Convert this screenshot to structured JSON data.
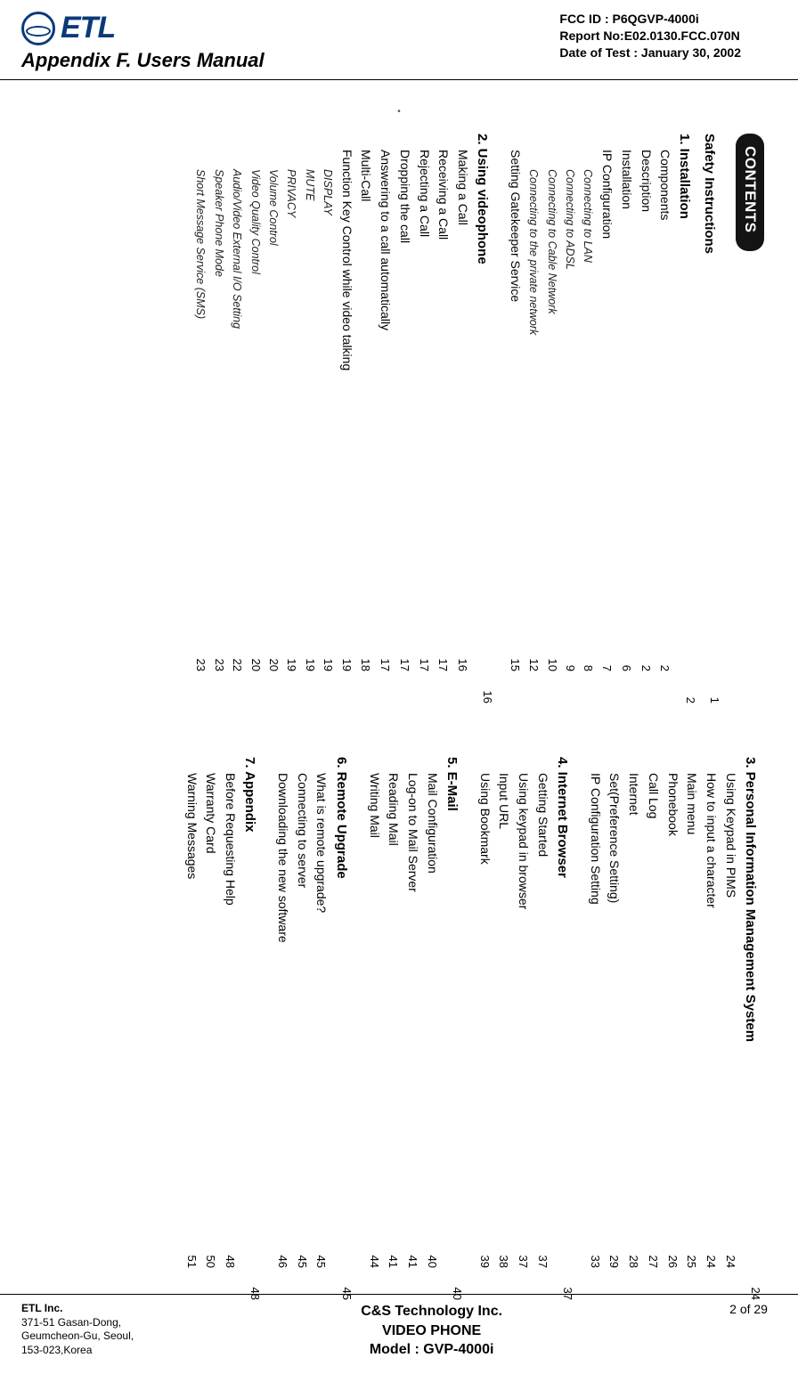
{
  "logo_text": "ETL",
  "header_meta": {
    "fcc": "FCC ID : P6QGVP-4000i",
    "report": "Report No:E02.0130.FCC.070N",
    "date": "Date of Test : January 30, 2002"
  },
  "appendix": "Appendix F.    Users Manual",
  "contents_label": "CONTENTS",
  "page_mark_top": "•",
  "toc_page1": [
    {
      "lvl": 0,
      "label": "Safety Instructions",
      "p1": "",
      "p2": "1"
    },
    {
      "lvl": 0,
      "label": "1. Installation",
      "p1": "",
      "p2": "2"
    },
    {
      "lvl": 1,
      "label": "Components",
      "p1": "2",
      "p2": ""
    },
    {
      "lvl": 1,
      "label": "Description",
      "p1": "2",
      "p2": ""
    },
    {
      "lvl": 1,
      "label": "Installation",
      "p1": "6",
      "p2": ""
    },
    {
      "lvl": 1,
      "label": "IP Configuration",
      "p1": "7",
      "p2": ""
    },
    {
      "lvl": 2,
      "label": "Connecting to LAN",
      "p1": "8",
      "p2": ""
    },
    {
      "lvl": 2,
      "label": "Connecting to ADSL",
      "p1": "9",
      "p2": ""
    },
    {
      "lvl": 2,
      "label": "Connecting to Cable Network",
      "p1": "10",
      "p2": ""
    },
    {
      "lvl": 2,
      "label": "Connecting to the private network",
      "p1": "12",
      "p2": ""
    },
    {
      "lvl": 1,
      "label": "Setting Gatekeeper Service",
      "p1": "15",
      "p2": ""
    },
    {
      "gap": "md"
    },
    {
      "lvl": 0,
      "label": "2. Using videophone",
      "p1": "",
      "p2": "16"
    },
    {
      "lvl": 1,
      "label": "Making a Call",
      "p1": "16",
      "p2": ""
    },
    {
      "lvl": 1,
      "label": "Receiving a Call",
      "p1": "17",
      "p2": ""
    },
    {
      "lvl": 1,
      "label": "Rejecting a Call",
      "p1": "17",
      "p2": ""
    },
    {
      "lvl": 1,
      "label": "Dropping the call",
      "p1": "17",
      "p2": ""
    },
    {
      "lvl": 1,
      "label": "Answering to a call automatically",
      "p1": "17",
      "p2": ""
    },
    {
      "lvl": 1,
      "label": "Multi-Call",
      "p1": "18",
      "p2": ""
    },
    {
      "lvl": 1,
      "label": "Function Key Control while video talking",
      "p1": "19",
      "p2": ""
    },
    {
      "lvl": 2,
      "label": "DISPLAY",
      "p1": "19",
      "p2": ""
    },
    {
      "lvl": 2,
      "label": "MUTE",
      "p1": "19",
      "p2": ""
    },
    {
      "lvl": 2,
      "label": "PRIVACY",
      "p1": "19",
      "p2": ""
    },
    {
      "lvl": 2,
      "label": "Volume Control",
      "p1": "20",
      "p2": ""
    },
    {
      "lvl": 2,
      "label": "Video Quality Control",
      "p1": "20",
      "p2": ""
    },
    {
      "lvl": 2,
      "label": "Audio/Video External I/O Setting",
      "p1": "22",
      "p2": ""
    },
    {
      "lvl": 2,
      "label": "Speaker Phone Mode",
      "p1": "23",
      "p2": ""
    },
    {
      "lvl": 2,
      "label": "Short Message Service (SMS)",
      "p1": "23",
      "p2": ""
    }
  ],
  "toc_page2": [
    {
      "lvl": 0,
      "label": "3. Personal Information Management System",
      "p1": "",
      "p2": "24"
    },
    {
      "lvl": 1,
      "label": "Using Keypad in PIMS",
      "p1": "24",
      "p2": ""
    },
    {
      "lvl": 1,
      "label": "How to input a character",
      "p1": "24",
      "p2": ""
    },
    {
      "lvl": 1,
      "label": "Main menu",
      "p1": "25",
      "p2": ""
    },
    {
      "lvl": 1,
      "label": "Phonebook",
      "p1": "26",
      "p2": ""
    },
    {
      "lvl": 1,
      "label": "Call Log",
      "p1": "27",
      "p2": ""
    },
    {
      "lvl": 1,
      "label": "Internet",
      "p1": "28",
      "p2": ""
    },
    {
      "lvl": 1,
      "label": "Set(Preference Setting)",
      "p1": "29",
      "p2": ""
    },
    {
      "lvl": 1,
      "label": "IP Configuration Setting",
      "p1": "33",
      "p2": ""
    },
    {
      "gap": "md"
    },
    {
      "lvl": 0,
      "label": "4. Internet Browser",
      "p1": "",
      "p2": "37"
    },
    {
      "lvl": 1,
      "label": "Getting Started",
      "p1": "37",
      "p2": ""
    },
    {
      "lvl": 1,
      "label": "Using keypad in browser",
      "p1": "37",
      "p2": ""
    },
    {
      "lvl": 1,
      "label": "Input URL",
      "p1": "38",
      "p2": ""
    },
    {
      "lvl": 1,
      "label": "Using Bookmark",
      "p1": "39",
      "p2": ""
    },
    {
      "gap": "md"
    },
    {
      "lvl": 0,
      "label": "5. E-Mail",
      "p1": "",
      "p2": "40"
    },
    {
      "lvl": 1,
      "label": "Mail Configuration",
      "p1": "40",
      "p2": ""
    },
    {
      "lvl": 1,
      "label": "Log-on to Mail Server",
      "p1": "41",
      "p2": ""
    },
    {
      "lvl": 1,
      "label": "Reading Mail",
      "p1": "41",
      "p2": ""
    },
    {
      "lvl": 1,
      "label": "Writing Mail",
      "p1": "44",
      "p2": ""
    },
    {
      "gap": "md"
    },
    {
      "lvl": 0,
      "label": "6. Remote Upgrade",
      "p1": "",
      "p2": "45"
    },
    {
      "lvl": 1,
      "label": "What is remote upgrade?",
      "p1": "45",
      "p2": ""
    },
    {
      "lvl": 1,
      "label": "Connecting to server",
      "p1": "45",
      "p2": ""
    },
    {
      "lvl": 1,
      "label": "Downloading the new software",
      "p1": "46",
      "p2": ""
    },
    {
      "gap": "md"
    },
    {
      "lvl": 0,
      "label": "7. Appendix",
      "p1": "",
      "p2": "48"
    },
    {
      "lvl": 1,
      "label": "Before Requesting Help",
      "p1": "48",
      "p2": ""
    },
    {
      "lvl": 1,
      "label": "Warranty Card",
      "p1": "50",
      "p2": ""
    },
    {
      "lvl": 1,
      "label": "Warning Messages",
      "p1": "51",
      "p2": ""
    }
  ],
  "footer": {
    "company": "ETL Inc.",
    "addr1": "371-51 Gasan-Dong,",
    "addr2": "Geumcheon-Gu, Seoul,",
    "addr3": "153-023,Korea",
    "center1": "C&S Technology Inc.",
    "center2": "VIDEO PHONE",
    "center3": "Model : GVP-4000i",
    "pageno": "2 of 29"
  }
}
